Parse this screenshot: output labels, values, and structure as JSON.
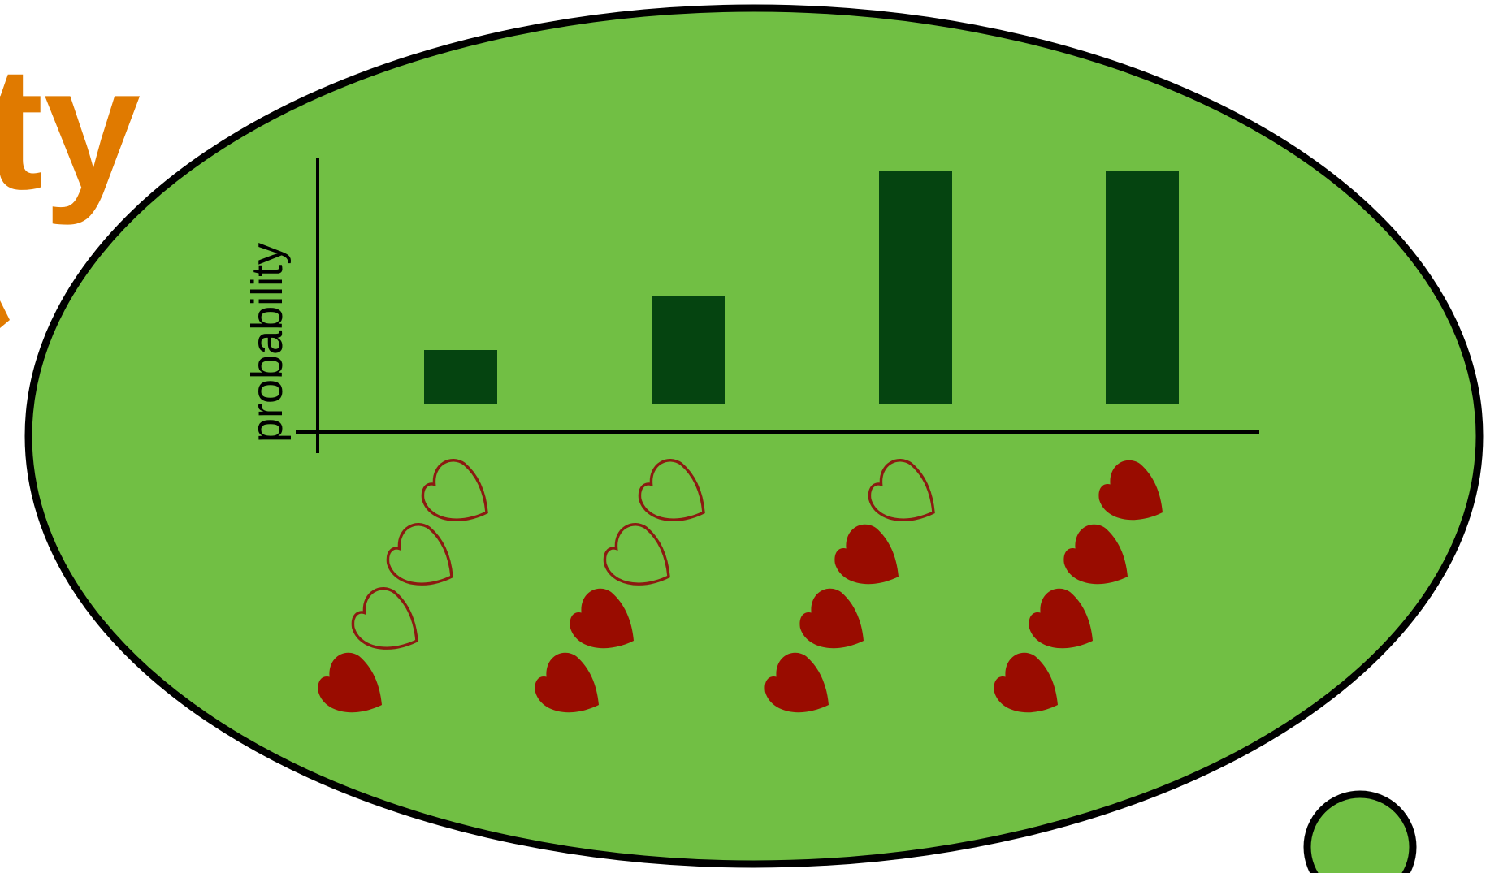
{
  "heading": {
    "fragment_text": "ty",
    "color": "#e07a00"
  },
  "colors": {
    "ellipse_fill": "#71bf44",
    "ellipse_stroke": "#000000",
    "bar_fill": "#054410",
    "heart_fill": "#990c00",
    "heart_outline": "#8b1a10",
    "axis": "#000000"
  },
  "chart_data": {
    "type": "bar",
    "categories": [
      "",
      "",
      "",
      ""
    ],
    "values": [
      0.9,
      1.8,
      3.9,
      3.9
    ],
    "ylim": [
      0,
      4.5
    ],
    "ylabel": "probability",
    "xlabel": "",
    "title": "",
    "grid": false,
    "legend": "none",
    "category_icons": [
      {
        "filled_hearts": 1,
        "empty_hearts": 3
      },
      {
        "filled_hearts": 2,
        "empty_hearts": 2
      },
      {
        "filled_hearts": 3,
        "empty_hearts": 1
      },
      {
        "filled_hearts": 4,
        "empty_hearts": 0
      }
    ]
  }
}
